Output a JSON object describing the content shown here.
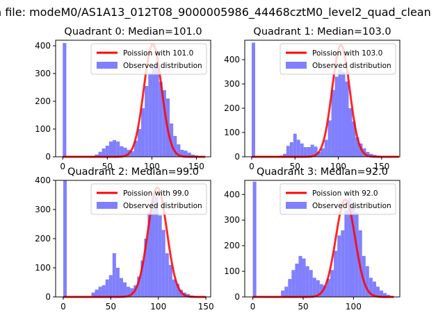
{
  "figure": {
    "suptitle": "n file: modeM0/AS1A13_012T08_9000005986_44468cztM0_level2_quad_clean"
  },
  "chart_data": [
    {
      "type": "histogram",
      "title": "Quadrant 0: Median=101.0",
      "xlim": [
        -8,
        166
      ],
      "ylim": [
        0,
        420
      ],
      "xticks": [
        0,
        50,
        100,
        150
      ],
      "yticks": [
        0,
        100,
        200,
        300,
        400
      ],
      "legend_position": "upper right",
      "histogram": {
        "name": "Observed distribution",
        "color": "#8080ff",
        "bin_start": 0,
        "bin_width": 4,
        "counts": [
          410,
          0,
          0,
          0,
          0,
          0,
          0,
          0,
          3,
          8,
          18,
          30,
          40,
          55,
          60,
          55,
          38,
          33,
          25,
          20,
          58,
          100,
          175,
          255,
          300,
          330,
          345,
          270,
          240,
          210,
          120,
          75,
          45,
          25,
          22,
          15,
          8,
          5,
          3,
          2
        ]
      },
      "line": {
        "name": "Poission with 101.0",
        "color": "#ff0000",
        "mean": 101,
        "peak": 405,
        "x_range": [
          0,
          160
        ]
      }
    },
    {
      "type": "histogram",
      "title": "Quadrant 1: Median=103.0",
      "xlim": [
        -8,
        171
      ],
      "ylim": [
        0,
        480
      ],
      "xticks": [
        0,
        50,
        100,
        150
      ],
      "yticks": [
        0,
        100,
        200,
        300,
        400
      ],
      "legend_position": "upper right",
      "histogram": {
        "name": "Observed distribution",
        "color": "#8080ff",
        "bin_start": 0,
        "bin_width": 4,
        "counts": [
          470,
          0,
          0,
          0,
          0,
          0,
          0,
          0,
          5,
          12,
          45,
          60,
          95,
          70,
          55,
          40,
          40,
          50,
          42,
          20,
          35,
          70,
          150,
          275,
          330,
          360,
          350,
          310,
          200,
          145,
          80,
          55,
          35,
          20,
          12,
          8,
          5,
          3,
          2,
          1
        ]
      },
      "line": {
        "name": "Poission with 103.0",
        "color": "#ff0000",
        "mean": 103,
        "peak": 460,
        "x_range": [
          0,
          170
        ]
      }
    },
    {
      "type": "histogram",
      "title": "Quadrant 2: Median=99.0",
      "xlim": [
        -8,
        155
      ],
      "ylim": [
        0,
        400
      ],
      "xticks": [
        0,
        50,
        100,
        150
      ],
      "yticks": [
        0,
        100,
        200,
        300,
        400
      ],
      "legend_position": "upper right",
      "histogram": {
        "name": "Observed distribution",
        "color": "#8080ff",
        "bin_start": 0,
        "bin_width": 3.7,
        "counts": [
          400,
          0,
          0,
          0,
          0,
          0,
          0,
          0,
          15,
          25,
          35,
          40,
          60,
          75,
          150,
          100,
          65,
          50,
          35,
          30,
          40,
          70,
          125,
          200,
          290,
          330,
          345,
          280,
          230,
          150,
          110,
          60,
          45,
          25,
          15,
          10,
          5,
          3,
          2,
          1
        ]
      },
      "line": {
        "name": "Poission with 99.0",
        "color": "#ff0000",
        "mean": 99,
        "peak": 375,
        "x_range": [
          0,
          150
        ]
      }
    },
    {
      "type": "histogram",
      "title": "Quadrant 3: Median=92.0",
      "xlim": [
        -8,
        146
      ],
      "ylim": [
        0,
        455
      ],
      "xticks": [
        0,
        50,
        100
      ],
      "yticks": [
        0,
        100,
        200,
        300,
        400
      ],
      "legend_position": "upper right",
      "histogram": {
        "name": "Observed distribution",
        "color": "#8080ff",
        "bin_start": 0,
        "bin_width": 3.5,
        "counts": [
          450,
          0,
          0,
          0,
          0,
          0,
          0,
          0,
          25,
          40,
          70,
          105,
          130,
          160,
          150,
          120,
          105,
          75,
          65,
          50,
          45,
          70,
          105,
          180,
          240,
          260,
          340,
          385,
          360,
          330,
          260,
          160,
          120,
          75,
          60,
          40,
          25,
          15,
          8,
          4
        ]
      },
      "line": {
        "name": "Poission with 92.0",
        "color": "#ff0000",
        "mean": 92,
        "peak": 380,
        "x_range": [
          0,
          140
        ]
      }
    }
  ]
}
